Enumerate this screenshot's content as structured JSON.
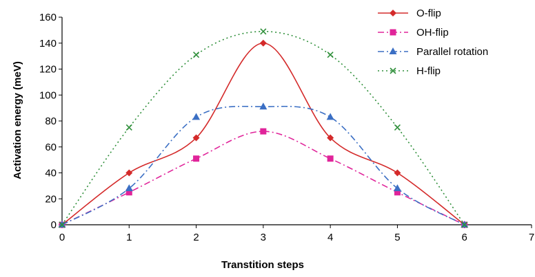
{
  "chart_data": {
    "type": "line",
    "title": "",
    "xlabel": "Transtition steps",
    "ylabel": "Activation energy (meV)",
    "xlim": [
      0,
      7
    ],
    "ylim": [
      0,
      160
    ],
    "xticks": [
      0,
      1,
      2,
      3,
      4,
      5,
      6,
      7
    ],
    "yticks": [
      0,
      20,
      40,
      60,
      80,
      100,
      120,
      140,
      160
    ],
    "grid": false,
    "legend": "top-right",
    "x": [
      0,
      1,
      2,
      3,
      4,
      5,
      6
    ],
    "series": [
      {
        "name": "O-flip",
        "values": [
          0,
          40,
          67,
          140,
          67,
          40,
          0
        ],
        "color": "#d42a2a",
        "marker": "diamond",
        "line": "solid"
      },
      {
        "name": "OH-flip",
        "values": [
          0,
          25,
          51,
          72,
          51,
          25,
          0
        ],
        "color": "#e0249a",
        "marker": "square",
        "line": "dash-dot"
      },
      {
        "name": "Parallel rotation",
        "values": [
          0,
          28,
          83,
          91,
          83,
          28,
          0
        ],
        "color": "#3b6fc4",
        "marker": "triangle",
        "line": "dash-dot"
      },
      {
        "name": "H-flip",
        "values": [
          0,
          75,
          131,
          149,
          131,
          75,
          0
        ],
        "color": "#2f8f3a",
        "marker": "x",
        "line": "dotted"
      }
    ]
  }
}
